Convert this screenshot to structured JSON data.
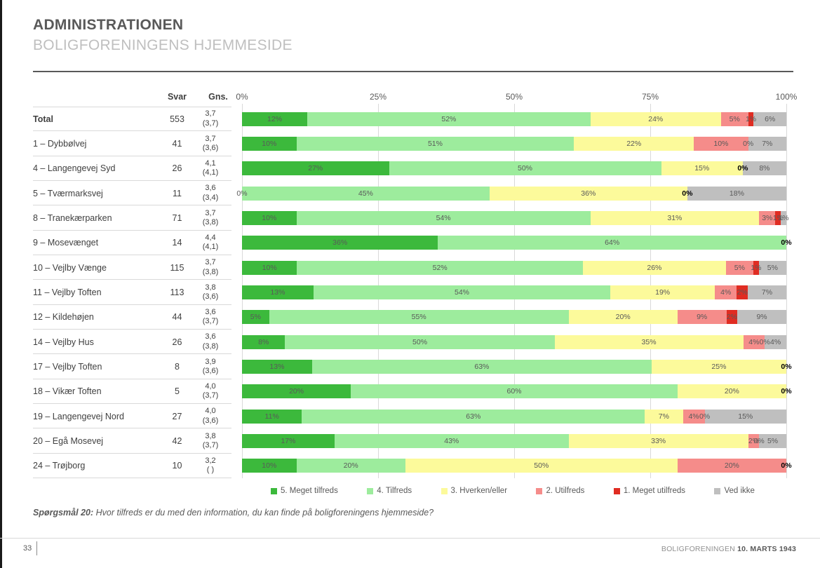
{
  "header": {
    "title": "ADMINISTRATIONEN",
    "subtitle": "BOLIGFORENINGENS HJEMMESIDE"
  },
  "table": {
    "col_svar": "Svar",
    "col_gns": "Gns."
  },
  "axis": {
    "ticks": [
      "0%",
      "25%",
      "50%",
      "75%",
      "100%"
    ]
  },
  "colors": {
    "s5": "#3cb93c",
    "s4": "#9dec9d",
    "s3": "#fcfa9b",
    "s2": "#f58c8a",
    "s1": "#e02c22",
    "dk": "#bfbfbf"
  },
  "legend": [
    {
      "key": "s5",
      "label": "5. Meget tilfreds"
    },
    {
      "key": "s4",
      "label": "4. Tilfreds"
    },
    {
      "key": "s3",
      "label": "3. Hverken/eller"
    },
    {
      "key": "s2",
      "label": "2. Utilfreds"
    },
    {
      "key": "s1",
      "label": "1. Meget utilfreds"
    },
    {
      "key": "dk",
      "label": "Ved ikke"
    }
  ],
  "rows": [
    {
      "label": "Total",
      "bold": true,
      "svar": "553",
      "gns": "3,7",
      "gns2": "(3,7)",
      "segs": [
        {
          "k": "s5",
          "v": 12,
          "t": "12%"
        },
        {
          "k": "s4",
          "v": 52,
          "t": "52%"
        },
        {
          "k": "s3",
          "v": 24,
          "t": "24%"
        },
        {
          "k": "s2",
          "v": 5,
          "t": "5%"
        },
        {
          "k": "s1",
          "v": 1,
          "t": "1%"
        },
        {
          "k": "dk",
          "v": 6,
          "t": "6%"
        }
      ]
    },
    {
      "label": "1 – Dybbølvej",
      "svar": "41",
      "gns": "3,7",
      "gns2": "(3,6)",
      "segs": [
        {
          "k": "s5",
          "v": 10,
          "t": "10%"
        },
        {
          "k": "s4",
          "v": 51,
          "t": "51%"
        },
        {
          "k": "s3",
          "v": 22,
          "t": "22%"
        },
        {
          "k": "s2",
          "v": 10,
          "t": "10%"
        },
        {
          "k": "s1",
          "v": 0,
          "t": "0%"
        },
        {
          "k": "dk",
          "v": 7,
          "t": "7%"
        }
      ]
    },
    {
      "label": "4 – Langengevej Syd",
      "svar": "26",
      "gns": "4,1",
      "gns2": "(4,1)",
      "segs": [
        {
          "k": "s5",
          "v": 27,
          "t": "27%"
        },
        {
          "k": "s4",
          "v": 50,
          "t": "50%"
        },
        {
          "k": "s3",
          "v": 15,
          "t": "15%"
        },
        {
          "k": "s2",
          "v": 0,
          "t": "0%",
          "b": true
        },
        {
          "k": "s1",
          "v": 0,
          "t": ""
        },
        {
          "k": "dk",
          "v": 8,
          "t": "8%"
        }
      ]
    },
    {
      "label": "5 – Tværmarksvej",
      "svar": "11",
      "gns": "3,6",
      "gns2": "(3,4)",
      "segs": [
        {
          "k": "s5",
          "v": 0,
          "t": "0%"
        },
        {
          "k": "s4",
          "v": 45,
          "t": "45%"
        },
        {
          "k": "s3",
          "v": 36,
          "t": "36%"
        },
        {
          "k": "s2",
          "v": 0,
          "t": "0%",
          "b": true
        },
        {
          "k": "s1",
          "v": 0,
          "t": ""
        },
        {
          "k": "dk",
          "v": 18,
          "t": "18%"
        }
      ]
    },
    {
      "label": "8 – Tranekærparken",
      "svar": "71",
      "gns": "3,7",
      "gns2": "(3,8)",
      "segs": [
        {
          "k": "s5",
          "v": 10,
          "t": "10%"
        },
        {
          "k": "s4",
          "v": 54,
          "t": "54%"
        },
        {
          "k": "s3",
          "v": 31,
          "t": "31%"
        },
        {
          "k": "s2",
          "v": 3,
          "t": "3%"
        },
        {
          "k": "s1",
          "v": 1,
          "t": "1%"
        },
        {
          "k": "dk",
          "v": 1,
          "t": "1%"
        }
      ]
    },
    {
      "label": "9 – Mosevænget",
      "svar": "14",
      "gns": "4,4",
      "gns2": "(4,1)",
      "segs": [
        {
          "k": "s5",
          "v": 36,
          "t": "36%"
        },
        {
          "k": "s4",
          "v": 64,
          "t": "64%"
        },
        {
          "k": "s3",
          "v": 0,
          "t": ""
        },
        {
          "k": "s2",
          "v": 0,
          "t": ""
        },
        {
          "k": "s1",
          "v": 0,
          "t": ""
        },
        {
          "k": "dk",
          "v": 0,
          "t": "0%",
          "b": true
        }
      ]
    },
    {
      "label": "10 – Vejlby Vænge",
      "svar": "115",
      "gns": "3,7",
      "gns2": "(3,8)",
      "segs": [
        {
          "k": "s5",
          "v": 10,
          "t": "10%"
        },
        {
          "k": "s4",
          "v": 52,
          "t": "52%"
        },
        {
          "k": "s3",
          "v": 26,
          "t": "26%"
        },
        {
          "k": "s2",
          "v": 5,
          "t": "5%"
        },
        {
          "k": "s1",
          "v": 1,
          "t": "1%"
        },
        {
          "k": "dk",
          "v": 5,
          "t": "5%"
        }
      ]
    },
    {
      "label": "11 – Vejlby Toften",
      "svar": "113",
      "gns": "3,8",
      "gns2": "(3,6)",
      "segs": [
        {
          "k": "s5",
          "v": 13,
          "t": "13%"
        },
        {
          "k": "s4",
          "v": 54,
          "t": "54%"
        },
        {
          "k": "s3",
          "v": 19,
          "t": "19%"
        },
        {
          "k": "s2",
          "v": 4,
          "t": "4%"
        },
        {
          "k": "s1",
          "v": 2,
          "t": "2%"
        },
        {
          "k": "dk",
          "v": 7,
          "t": "7%"
        }
      ]
    },
    {
      "label": "12 – Kildehøjen",
      "svar": "44",
      "gns": "3,6",
      "gns2": "(3,7)",
      "segs": [
        {
          "k": "s5",
          "v": 5,
          "t": "5%"
        },
        {
          "k": "s4",
          "v": 55,
          "t": "55%"
        },
        {
          "k": "s3",
          "v": 20,
          "t": "20%"
        },
        {
          "k": "s2",
          "v": 9,
          "t": "9%"
        },
        {
          "k": "s1",
          "v": 2,
          "t": "2%"
        },
        {
          "k": "dk",
          "v": 9,
          "t": "9%"
        }
      ]
    },
    {
      "label": "14 – Vejlby Hus",
      "svar": "26",
      "gns": "3,6",
      "gns2": "(3,8)",
      "segs": [
        {
          "k": "s5",
          "v": 8,
          "t": "8%"
        },
        {
          "k": "s4",
          "v": 50,
          "t": "50%"
        },
        {
          "k": "s3",
          "v": 35,
          "t": "35%"
        },
        {
          "k": "s2",
          "v": 4,
          "t": "4%"
        },
        {
          "k": "s1",
          "v": 0,
          "t": "0%"
        },
        {
          "k": "dk",
          "v": 4,
          "t": "4%"
        }
      ]
    },
    {
      "label": "17 – Vejlby Toften",
      "svar": "8",
      "gns": "3,9",
      "gns2": "(3,6)",
      "segs": [
        {
          "k": "s5",
          "v": 13,
          "t": "13%"
        },
        {
          "k": "s4",
          "v": 63,
          "t": "63%"
        },
        {
          "k": "s3",
          "v": 25,
          "t": "25%"
        },
        {
          "k": "s2",
          "v": 0,
          "t": ""
        },
        {
          "k": "s1",
          "v": 0,
          "t": ""
        },
        {
          "k": "dk",
          "v": 0,
          "t": "0%",
          "b": true
        }
      ]
    },
    {
      "label": "18 – Vikær Toften",
      "svar": "5",
      "gns": "4,0",
      "gns2": "(3,7)",
      "segs": [
        {
          "k": "s5",
          "v": 20,
          "t": "20%"
        },
        {
          "k": "s4",
          "v": 60,
          "t": "60%"
        },
        {
          "k": "s3",
          "v": 20,
          "t": "20%"
        },
        {
          "k": "s2",
          "v": 0,
          "t": ""
        },
        {
          "k": "s1",
          "v": 0,
          "t": ""
        },
        {
          "k": "dk",
          "v": 0,
          "t": "0%",
          "b": true
        }
      ]
    },
    {
      "label": "19 – Langengevej Nord",
      "svar": "27",
      "gns": "4,0",
      "gns2": "(3,6)",
      "segs": [
        {
          "k": "s5",
          "v": 11,
          "t": "11%"
        },
        {
          "k": "s4",
          "v": 63,
          "t": "63%"
        },
        {
          "k": "s3",
          "v": 7,
          "t": "7%"
        },
        {
          "k": "s2",
          "v": 4,
          "t": "4%"
        },
        {
          "k": "s1",
          "v": 0,
          "t": "0%"
        },
        {
          "k": "dk",
          "v": 15,
          "t": "15%"
        }
      ]
    },
    {
      "label": "20 – Egå Mosevej",
      "svar": "42",
      "gns": "3,8",
      "gns2": "(3,7)",
      "segs": [
        {
          "k": "s5",
          "v": 17,
          "t": "17%"
        },
        {
          "k": "s4",
          "v": 43,
          "t": "43%"
        },
        {
          "k": "s3",
          "v": 33,
          "t": "33%"
        },
        {
          "k": "s2",
          "v": 2,
          "t": "2%"
        },
        {
          "k": "s1",
          "v": 0,
          "t": "0%"
        },
        {
          "k": "dk",
          "v": 5,
          "t": "5%"
        }
      ]
    },
    {
      "label": "24 – Trøjborg",
      "svar": "10",
      "gns": "3,2",
      "gns2": "( )",
      "segs": [
        {
          "k": "s5",
          "v": 10,
          "t": "10%"
        },
        {
          "k": "s4",
          "v": 20,
          "t": "20%"
        },
        {
          "k": "s3",
          "v": 50,
          "t": "50%"
        },
        {
          "k": "s2",
          "v": 20,
          "t": "20%"
        },
        {
          "k": "s1",
          "v": 0,
          "t": ""
        },
        {
          "k": "dk",
          "v": 0,
          "t": "0%",
          "b": true
        }
      ]
    }
  ],
  "chart_data": {
    "type": "bar",
    "stacked": true,
    "orientation": "horizontal",
    "title": "ADMINISTRATIONEN – BOLIGFORENINGENS HJEMMESIDE",
    "categories": [
      "Total",
      "1 – Dybbølvej",
      "4 – Langengevej Syd",
      "5 – Tværmarksvej",
      "8 – Tranekærparken",
      "9 – Mosevænget",
      "10 – Vejlby Vænge",
      "11 – Vejlby Toften",
      "12 – Kildehøjen",
      "14 – Vejlby Hus",
      "17 – Vejlby Toften",
      "18 – Vikær Toften",
      "19 – Langengevej Nord",
      "20 – Egå Mosevej",
      "24 – Trøjborg"
    ],
    "svar_counts": [
      553,
      41,
      26,
      11,
      71,
      14,
      115,
      113,
      44,
      26,
      8,
      5,
      27,
      42,
      10
    ],
    "gns": [
      "3,7 (3,7)",
      "3,7 (3,6)",
      "4,1 (4,1)",
      "3,6 (3,4)",
      "3,7 (3,8)",
      "4,4 (4,1)",
      "3,7 (3,8)",
      "3,8 (3,6)",
      "3,6 (3,7)",
      "3,6 (3,8)",
      "3,9 (3,6)",
      "4,0 (3,7)",
      "4,0 (3,6)",
      "3,8 (3,7)",
      "3,2 ( )"
    ],
    "series": [
      {
        "name": "5. Meget tilfreds",
        "color": "#3cb93c",
        "values": [
          12,
          10,
          27,
          0,
          10,
          36,
          10,
          13,
          5,
          8,
          13,
          20,
          11,
          17,
          10
        ]
      },
      {
        "name": "4. Tilfreds",
        "color": "#9dec9d",
        "values": [
          52,
          51,
          50,
          45,
          54,
          64,
          52,
          54,
          55,
          50,
          63,
          60,
          63,
          43,
          20
        ]
      },
      {
        "name": "3. Hverken/eller",
        "color": "#fcfa9b",
        "values": [
          24,
          22,
          15,
          36,
          31,
          0,
          26,
          19,
          20,
          35,
          25,
          20,
          7,
          33,
          50
        ]
      },
      {
        "name": "2. Utilfreds",
        "color": "#f58c8a",
        "values": [
          5,
          10,
          0,
          0,
          3,
          0,
          5,
          4,
          9,
          4,
          0,
          0,
          4,
          2,
          20
        ]
      },
      {
        "name": "1. Meget utilfreds",
        "color": "#e02c22",
        "values": [
          1,
          0,
          0,
          0,
          1,
          0,
          1,
          2,
          2,
          0,
          0,
          0,
          0,
          0,
          0
        ]
      },
      {
        "name": "Ved ikke",
        "color": "#bfbfbf",
        "values": [
          6,
          7,
          8,
          18,
          1,
          0,
          5,
          7,
          9,
          4,
          0,
          0,
          15,
          5,
          0
        ]
      }
    ],
    "xlim": [
      0,
      100
    ],
    "x_ticks": [
      "0%",
      "25%",
      "50%",
      "75%",
      "100%"
    ],
    "grid": true,
    "legend_position": "bottom"
  },
  "footer": {
    "question_prefix": "Spørgsmål 20:",
    "question_text": " Hvor tilfreds er du med den information, du kan finde på boligforeningens hjemmeside?",
    "page_number": "33",
    "org": "BOLIGFORENINGEN ",
    "date": "10. MARTS 1943"
  }
}
